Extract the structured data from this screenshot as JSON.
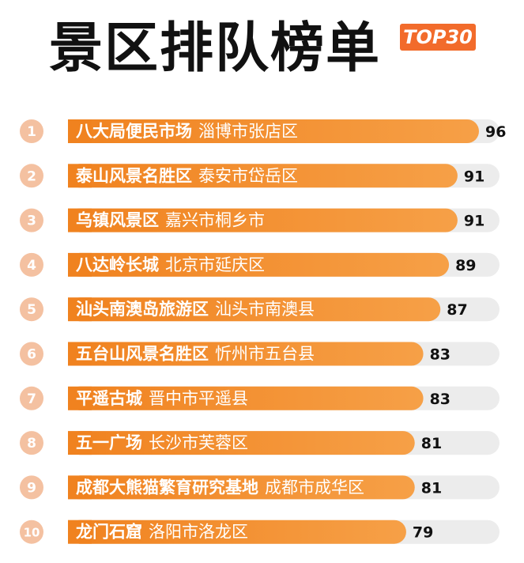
{
  "title": "景区排队榜单",
  "badge": "TOP30",
  "colors": {
    "bar_start": "#f0821f",
    "bar_end": "#f6a047",
    "track": "#ececec",
    "rank_circle": "#f4c1a1",
    "text_light": "#ffffff",
    "text_dark": "#111111"
  },
  "chart_data": {
    "type": "bar",
    "orientation": "horizontal",
    "title": "景区排队榜单",
    "xlim": [
      0,
      100
    ],
    "grid": false,
    "series": [
      {
        "values": [
          96,
          91,
          91,
          89,
          87,
          83,
          83,
          81,
          81,
          79
        ]
      }
    ],
    "categories": [
      {
        "rank": "1",
        "name": "八大局便民市场",
        "location": "淄博市张店区",
        "value": 96
      },
      {
        "rank": "2",
        "name": "泰山风景名胜区",
        "location": "泰安市岱岳区",
        "value": 91
      },
      {
        "rank": "3",
        "name": "乌镇风景区",
        "location": "嘉兴市桐乡市",
        "value": 91
      },
      {
        "rank": "4",
        "name": "八达岭长城",
        "location": "北京市延庆区",
        "value": 89
      },
      {
        "rank": "5",
        "name": "汕头南澳岛旅游区",
        "location": "汕头市南澳县",
        "value": 87
      },
      {
        "rank": "6",
        "name": "五台山风景名胜区",
        "location": "忻州市五台县",
        "value": 83
      },
      {
        "rank": "7",
        "name": "平遥古城",
        "location": "晋中市平遥县",
        "value": 83
      },
      {
        "rank": "8",
        "name": "五一广场",
        "location": "长沙市芙蓉区",
        "value": 81
      },
      {
        "rank": "9",
        "name": "成都大熊猫繁育研究基地",
        "location": "成都市成华区",
        "value": 81
      },
      {
        "rank": "10",
        "name": "龙门石窟",
        "location": "洛阳市洛龙区",
        "value": 79
      }
    ]
  }
}
